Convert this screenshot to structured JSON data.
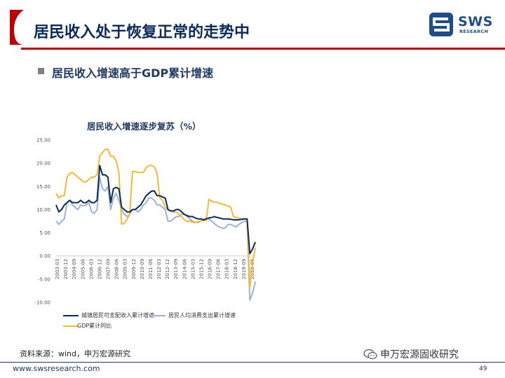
{
  "header": {
    "title": "居民收入处于恢复正常的走势中",
    "logo_text": "SWS",
    "logo_sub": "RESEARCH"
  },
  "section": {
    "subtitle": "居民收入增速高于GDP累计增速"
  },
  "colors": {
    "red": "#c00000",
    "navy": "#0b2a5a",
    "series1": "#0b2a5a",
    "series2": "#9db3d3",
    "series3": "#f5b932"
  },
  "chart_data": {
    "type": "line",
    "title": "居民收入增速逐步复苏（%）",
    "ylim": [
      -10,
      25
    ],
    "yticks": [
      "25.00",
      "20.00",
      "15.00",
      "10.00",
      "5.00",
      "0.00",
      "-5.00",
      "-10.00"
    ],
    "xticks": [
      "2003-03",
      "2003-12",
      "2004-09",
      "2005-06",
      "2006-03",
      "2006-12",
      "2007-09",
      "2008-06",
      "2009-03",
      "2009-12",
      "2010-09",
      "2011-06",
      "2012-03",
      "2012-12",
      "2013-09",
      "2014-06",
      "2015-03",
      "2015-12",
      "2016-09",
      "2017-06",
      "2018-03",
      "2018-12",
      "2019-09",
      "2020-06"
    ],
    "legend": [
      "城镇居民可支配收入累计增速",
      "居民人均消费支出累计增速",
      "GDP累计同比"
    ],
    "series": [
      {
        "name": "城镇居民可支配收入累计增速",
        "values": [
          11,
          9.5,
          10,
          11,
          11.5,
          12,
          11.5,
          11.5,
          11.5,
          12,
          11.5,
          11.5,
          12,
          11.5,
          11.5,
          12,
          19.5,
          17.5,
          17.5,
          17,
          11.5,
          14.5,
          14.8,
          14.5,
          10.5,
          10,
          9.5,
          9.5,
          10,
          10,
          10.5,
          11,
          12,
          13,
          13.5,
          14,
          14,
          13,
          13,
          12.7,
          12.5,
          10,
          9.7,
          9.7,
          10,
          10,
          9.5,
          9,
          8.7,
          8.5,
          8.5,
          8.2,
          8,
          8,
          7.8,
          8,
          8.2,
          8.3,
          8.5,
          8.3,
          8.2,
          8,
          8,
          8,
          7.9,
          7.8,
          7.8,
          7.8,
          7.9,
          8,
          8,
          0.5,
          1.5,
          3
        ]
      },
      {
        "name": "居民人均消费支出累计增速",
        "values": [
          7.5,
          6.8,
          7.5,
          8,
          11.5,
          12,
          11,
          10.5,
          10,
          11,
          10.8,
          11,
          11.5,
          9.5,
          9.2,
          10,
          17,
          14.5,
          14,
          15,
          10,
          12.5,
          13.5,
          12,
          10,
          9,
          8.5,
          9,
          10,
          10,
          9.5,
          10,
          11,
          11.5,
          12.5,
          12.5,
          12,
          11,
          11,
          10.5,
          10,
          7.5,
          7.5,
          8,
          8.5,
          8.5,
          9,
          9,
          8.5,
          8,
          7.5,
          7.3,
          7.2,
          7.5,
          7.8,
          8,
          8,
          7.5,
          7,
          6.5,
          6.2,
          6,
          6,
          6.8,
          6.8,
          6.5,
          6.3,
          6.8,
          7.2,
          7.5,
          7.5,
          -9.5,
          -8,
          -5.5
        ]
      },
      {
        "name": "GDP累计同比",
        "values": [
          13.5,
          12.5,
          13,
          13,
          17,
          17.8,
          18,
          17.5,
          17,
          16.5,
          16,
          16,
          16.5,
          17,
          17,
          17.5,
          21.5,
          22.3,
          23,
          23,
          21.5,
          21.5,
          20.5,
          18,
          6.9,
          7,
          8,
          9,
          18.2,
          18.2,
          18,
          18,
          18,
          19,
          19.5,
          19.5,
          19.2,
          17.8,
          12.5,
          12,
          10.5,
          10,
          9.8,
          9.5,
          9.5,
          9,
          8.5,
          7.8,
          7.5,
          7.5,
          7.3,
          7.2,
          7.4,
          7.5,
          7.6,
          7.6,
          12.2,
          11.8,
          11.6,
          11.6,
          11.3,
          11.2,
          11,
          10.8,
          10.5,
          8.5,
          8.3,
          8.2,
          8,
          8,
          8,
          -6.8,
          -1.5,
          1.8
        ]
      }
    ]
  },
  "footer": {
    "source": "资料来源：wind，申万宏源研究",
    "watermark": "申万宏源固收研究",
    "website": "www.swsresearch.com",
    "page": "49"
  }
}
